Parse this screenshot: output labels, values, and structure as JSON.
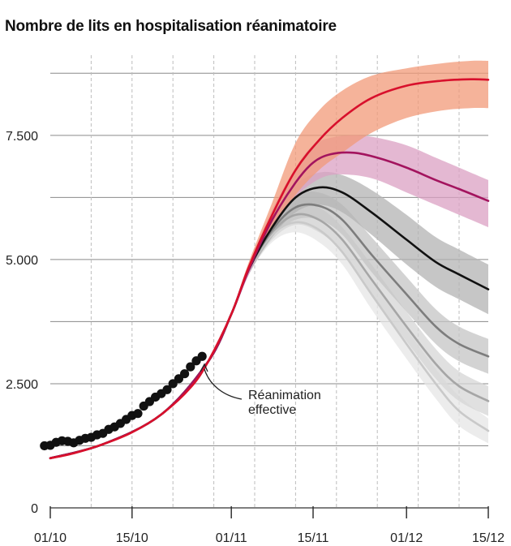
{
  "title": "Nombre de lits en hospitalisation réanimatoire",
  "chart_data": {
    "type": "line",
    "title": "Nombre de lits en hospitalisation réanimatoire",
    "x_unit": "date",
    "x_ticks": [
      "01/10",
      "15/10",
      "01/11",
      "15/11",
      "01/12",
      "15/12"
    ],
    "y_ticks": [
      "0",
      "2.500",
      "5.000",
      "7.500"
    ],
    "ylim": [
      0,
      9000
    ],
    "xlim": [
      "2020-10-01",
      "2020-12-15"
    ],
    "grid": true,
    "annotation": {
      "text_line1": "Réanimation",
      "text_line2": "effective",
      "points_to": "2020-10-27"
    },
    "observed": {
      "name": "Réanimation effective",
      "color": "#111111",
      "x": [
        "2020-09-30",
        "2020-10-01",
        "2020-10-02",
        "2020-10-03",
        "2020-10-04",
        "2020-10-05",
        "2020-10-06",
        "2020-10-07",
        "2020-10-08",
        "2020-10-09",
        "2020-10-10",
        "2020-10-11",
        "2020-10-12",
        "2020-10-13",
        "2020-10-14",
        "2020-10-15",
        "2020-10-16",
        "2020-10-17",
        "2020-10-18",
        "2020-10-19",
        "2020-10-20",
        "2020-10-21",
        "2020-10-22",
        "2020-10-23",
        "2020-10-24",
        "2020-10-25",
        "2020-10-26",
        "2020-10-27"
      ],
      "y": [
        1250,
        1260,
        1320,
        1350,
        1340,
        1310,
        1360,
        1400,
        1420,
        1470,
        1500,
        1580,
        1630,
        1700,
        1780,
        1860,
        1900,
        2050,
        2140,
        2230,
        2300,
        2380,
        2500,
        2600,
        2700,
        2840,
        2960,
        3050
      ]
    },
    "series": [
      {
        "name": "",
        "color": "#d8102c",
        "band_color": "#f29a78",
        "x": [
          "2020-10-01",
          "2020-10-05",
          "2020-10-10",
          "2020-10-15",
          "2020-10-20",
          "2020-10-25",
          "2020-10-28",
          "2020-11-01",
          "2020-11-04",
          "2020-11-08",
          "2020-11-12",
          "2020-11-16",
          "2020-11-20",
          "2020-11-25",
          "2020-12-01",
          "2020-12-07",
          "2020-12-12",
          "2020-12-15"
        ],
        "y": [
          1000,
          1100,
          1280,
          1520,
          1880,
          2420,
          2940,
          3900,
          4850,
          5900,
          6800,
          7400,
          7850,
          8250,
          8500,
          8600,
          8630,
          8620
        ],
        "lower": [
          980,
          1080,
          1260,
          1500,
          1860,
          2400,
          2900,
          3850,
          4750,
          5600,
          6300,
          6800,
          7150,
          7550,
          7850,
          8000,
          8050,
          8050
        ],
        "upper": [
          1020,
          1120,
          1300,
          1540,
          1900,
          2440,
          2980,
          3950,
          4950,
          6150,
          7350,
          8000,
          8400,
          8700,
          8850,
          8950,
          9000,
          9000
        ]
      },
      {
        "name": "",
        "color": "#a3145e",
        "band_color": "#dba0c3",
        "x": [
          "2020-10-01",
          "2020-10-10",
          "2020-10-20",
          "2020-10-28",
          "2020-11-01",
          "2020-11-04",
          "2020-11-08",
          "2020-11-12",
          "2020-11-15",
          "2020-11-18",
          "2020-11-22",
          "2020-11-26",
          "2020-12-01",
          "2020-12-06",
          "2020-12-10",
          "2020-12-15"
        ],
        "y": [
          1000,
          1280,
          1880,
          2940,
          3900,
          4800,
          5800,
          6550,
          6950,
          7120,
          7150,
          7050,
          6850,
          6600,
          6420,
          6180
        ],
        "lower": [
          980,
          1260,
          1860,
          2900,
          3850,
          4700,
          5600,
          6250,
          6550,
          6700,
          6700,
          6600,
          6350,
          6100,
          5900,
          5650
        ],
        "upper": [
          1020,
          1300,
          1900,
          2980,
          3950,
          4900,
          6000,
          6850,
          7300,
          7450,
          7500,
          7450,
          7300,
          7050,
          6850,
          6600
        ]
      },
      {
        "name": "",
        "color": "#111111",
        "band_color": "#b3b3b3",
        "x": [
          "2020-10-01",
          "2020-10-10",
          "2020-10-20",
          "2020-10-28",
          "2020-11-01",
          "2020-11-04",
          "2020-11-08",
          "2020-11-12",
          "2020-11-16",
          "2020-11-20",
          "2020-11-25",
          "2020-12-01",
          "2020-12-06",
          "2020-12-10",
          "2020-12-15"
        ],
        "y": [
          1000,
          1280,
          1880,
          2940,
          3900,
          4800,
          5650,
          6250,
          6450,
          6350,
          5950,
          5400,
          4950,
          4700,
          4400
        ],
        "lower": [
          980,
          1260,
          1860,
          2900,
          3850,
          4700,
          5450,
          5950,
          6100,
          5950,
          5500,
          4900,
          4450,
          4200,
          3900
        ],
        "upper": [
          1020,
          1300,
          1900,
          2980,
          3950,
          4900,
          5850,
          6500,
          6750,
          6700,
          6400,
          5900,
          5450,
          5200,
          4900
        ]
      },
      {
        "name": "",
        "color": "#7d7d7d",
        "band_color": "#c4c4c4",
        "x": [
          "2020-10-01",
          "2020-10-10",
          "2020-10-20",
          "2020-10-28",
          "2020-11-01",
          "2020-11-04",
          "2020-11-08",
          "2020-11-12",
          "2020-11-16",
          "2020-11-20",
          "2020-11-25",
          "2020-12-01",
          "2020-12-06",
          "2020-12-10",
          "2020-12-15"
        ],
        "y": [
          1000,
          1280,
          1880,
          2940,
          3900,
          4800,
          5600,
          6050,
          6080,
          5800,
          5100,
          4300,
          3650,
          3300,
          3050
        ],
        "lower": [
          980,
          1260,
          1860,
          2900,
          3850,
          4700,
          5450,
          5800,
          5800,
          5500,
          4750,
          3950,
          3300,
          2950,
          2700
        ],
        "upper": [
          1020,
          1300,
          1900,
          2980,
          3950,
          4900,
          5800,
          6300,
          6350,
          6100,
          5450,
          4650,
          4000,
          3650,
          3400
        ]
      },
      {
        "name": "",
        "color": "#a6a6a6",
        "band_color": "#d6d6d6",
        "x": [
          "2020-10-01",
          "2020-10-10",
          "2020-10-20",
          "2020-10-28",
          "2020-11-01",
          "2020-11-04",
          "2020-11-08",
          "2020-11-12",
          "2020-11-16",
          "2020-11-20",
          "2020-11-25",
          "2020-12-01",
          "2020-12-06",
          "2020-12-10",
          "2020-12-15"
        ],
        "y": [
          1000,
          1280,
          1880,
          2940,
          3900,
          4800,
          5550,
          5900,
          5800,
          5400,
          4600,
          3650,
          2900,
          2450,
          2150
        ],
        "lower": [
          980,
          1260,
          1860,
          2900,
          3850,
          4700,
          5400,
          5700,
          5550,
          5150,
          4300,
          3350,
          2600,
          2150,
          1850
        ],
        "upper": [
          1020,
          1300,
          1900,
          2980,
          3950,
          4900,
          5700,
          6100,
          6050,
          5650,
          4900,
          3950,
          3200,
          2750,
          2450
        ]
      },
      {
        "name": "",
        "color": "#c9c9c9",
        "band_color": "#e6e6e6",
        "x": [
          "2020-10-01",
          "2020-10-10",
          "2020-10-20",
          "2020-10-28",
          "2020-11-01",
          "2020-11-04",
          "2020-11-08",
          "2020-11-12",
          "2020-11-16",
          "2020-11-20",
          "2020-11-25",
          "2020-12-01",
          "2020-12-06",
          "2020-12-10",
          "2020-12-15"
        ],
        "y": [
          1000,
          1280,
          1880,
          2940,
          3900,
          4800,
          5500,
          5750,
          5600,
          5150,
          4300,
          3300,
          2500,
          1950,
          1550
        ],
        "lower": [
          980,
          1260,
          1860,
          2900,
          3850,
          4700,
          5350,
          5550,
          5350,
          4900,
          4000,
          3000,
          2200,
          1650,
          1300
        ],
        "upper": [
          1020,
          1300,
          1900,
          2980,
          3950,
          4900,
          5650,
          5950,
          5850,
          5400,
          4600,
          3600,
          2800,
          2250,
          1800
        ]
      }
    ]
  }
}
